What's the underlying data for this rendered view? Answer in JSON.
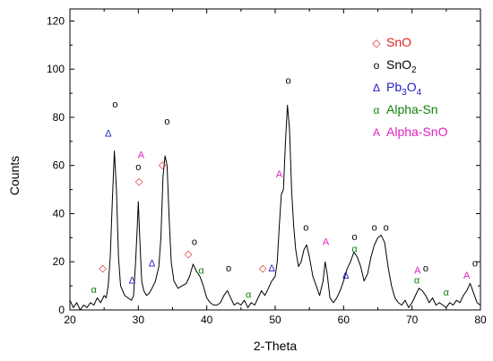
{
  "chart_data": {
    "type": "line",
    "xlabel": "2-Theta",
    "ylabel": "Counts",
    "xlim": [
      20,
      80
    ],
    "ylim": [
      0,
      125
    ],
    "x_ticks": [
      20,
      30,
      40,
      50,
      60,
      70,
      80
    ],
    "y_ticks": [
      0,
      20,
      40,
      60,
      80,
      100,
      120
    ],
    "x_tick_labels": [
      "20",
      "30",
      "40",
      "50",
      "60",
      "70",
      "80"
    ],
    "y_tick_labels": [
      "0",
      "20",
      "40",
      "60",
      "80",
      "100",
      "120"
    ],
    "grid": false,
    "legend_position": "top-right",
    "series": [
      {
        "color": "#000000",
        "points": [
          [
            20,
            4
          ],
          [
            20.5,
            1
          ],
          [
            21,
            3
          ],
          [
            21.5,
            0
          ],
          [
            22,
            2
          ],
          [
            22.5,
            1
          ],
          [
            23,
            3
          ],
          [
            23.5,
            2
          ],
          [
            24,
            5
          ],
          [
            24.5,
            3
          ],
          [
            25,
            6
          ],
          [
            25.3,
            5
          ],
          [
            25.6,
            10
          ],
          [
            25.9,
            22
          ],
          [
            26.2,
            45
          ],
          [
            26.5,
            66
          ],
          [
            26.8,
            50
          ],
          [
            27.1,
            22
          ],
          [
            27.4,
            10
          ],
          [
            27.7,
            8
          ],
          [
            28,
            6
          ],
          [
            28.5,
            5
          ],
          [
            29,
            4
          ],
          [
            29.3,
            6
          ],
          [
            29.6,
            20
          ],
          [
            29.85,
            35
          ],
          [
            30,
            45
          ],
          [
            30.2,
            30
          ],
          [
            30.5,
            12
          ],
          [
            30.8,
            8
          ],
          [
            31.2,
            6
          ],
          [
            31.6,
            7
          ],
          [
            32,
            9
          ],
          [
            32.5,
            12
          ],
          [
            33,
            18
          ],
          [
            33.3,
            30
          ],
          [
            33.6,
            55
          ],
          [
            33.9,
            64
          ],
          [
            34.2,
            60
          ],
          [
            34.5,
            38
          ],
          [
            34.8,
            20
          ],
          [
            35.2,
            12
          ],
          [
            35.8,
            9
          ],
          [
            36.4,
            10
          ],
          [
            37,
            11
          ],
          [
            37.5,
            14
          ],
          [
            38,
            19
          ],
          [
            38.5,
            16
          ],
          [
            39,
            14
          ],
          [
            39.5,
            10
          ],
          [
            40,
            5
          ],
          [
            40.5,
            3
          ],
          [
            41,
            2
          ],
          [
            41.5,
            2
          ],
          [
            42,
            3
          ],
          [
            42.5,
            6
          ],
          [
            43,
            8
          ],
          [
            43.5,
            5
          ],
          [
            44,
            2
          ],
          [
            44.5,
            3
          ],
          [
            45,
            2
          ],
          [
            45.5,
            4
          ],
          [
            46,
            1
          ],
          [
            46.5,
            3
          ],
          [
            47,
            2
          ],
          [
            47.5,
            5
          ],
          [
            48,
            8
          ],
          [
            48.5,
            6
          ],
          [
            49,
            9
          ],
          [
            49.5,
            12
          ],
          [
            50,
            14
          ],
          [
            50.3,
            20
          ],
          [
            50.6,
            35
          ],
          [
            50.9,
            48
          ],
          [
            51.2,
            50
          ],
          [
            51.5,
            70
          ],
          [
            51.8,
            85
          ],
          [
            52.1,
            75
          ],
          [
            52.4,
            50
          ],
          [
            52.7,
            35
          ],
          [
            53,
            25
          ],
          [
            53.4,
            18
          ],
          [
            53.8,
            20
          ],
          [
            54.2,
            25
          ],
          [
            54.6,
            27
          ],
          [
            55,
            22
          ],
          [
            55.5,
            14
          ],
          [
            56,
            10
          ],
          [
            56.5,
            6
          ],
          [
            57,
            12
          ],
          [
            57.3,
            20
          ],
          [
            57.6,
            15
          ],
          [
            58,
            5
          ],
          [
            58.5,
            3
          ],
          [
            59,
            5
          ],
          [
            59.5,
            8
          ],
          [
            60,
            12
          ],
          [
            60.5,
            17
          ],
          [
            61,
            20
          ],
          [
            61.5,
            24
          ],
          [
            62,
            22
          ],
          [
            62.5,
            18
          ],
          [
            63,
            12
          ],
          [
            63.5,
            15
          ],
          [
            64,
            22
          ],
          [
            64.5,
            27
          ],
          [
            65,
            30
          ],
          [
            65.5,
            31
          ],
          [
            66,
            28
          ],
          [
            66.5,
            18
          ],
          [
            67,
            10
          ],
          [
            67.5,
            5
          ],
          [
            68,
            3
          ],
          [
            68.5,
            2
          ],
          [
            69,
            4
          ],
          [
            69.5,
            1
          ],
          [
            70,
            3
          ],
          [
            70.5,
            6
          ],
          [
            71,
            9
          ],
          [
            71.5,
            8
          ],
          [
            72,
            6
          ],
          [
            72.5,
            3
          ],
          [
            73,
            5
          ],
          [
            73.5,
            2
          ],
          [
            74,
            3
          ],
          [
            74.5,
            2
          ],
          [
            75,
            1
          ],
          [
            75.5,
            3
          ],
          [
            76,
            2
          ],
          [
            76.5,
            4
          ],
          [
            77,
            3
          ],
          [
            77.5,
            6
          ],
          [
            78,
            8
          ],
          [
            78.5,
            11
          ],
          [
            79,
            7
          ],
          [
            79.5,
            3
          ],
          [
            80,
            2
          ]
        ]
      }
    ],
    "legend": [
      {
        "symbol": "◇",
        "label": "SnO",
        "sub": "",
        "color": "#e02020"
      },
      {
        "symbol": "o",
        "label": "SnO",
        "sub": "2",
        "color": "#000000"
      },
      {
        "symbol": "Δ",
        "label": "Pb",
        "sub": "3",
        "label2": "O",
        "sub2": "4",
        "color": "#2020c0"
      },
      {
        "symbol": "α",
        "label": "Alpha-Sn",
        "sub": "",
        "color": "#108010"
      },
      {
        "symbol": "A",
        "label": "Alpha-SnO",
        "sub": "",
        "color": "#e020c0"
      }
    ],
    "annotations": [
      {
        "s": "◇",
        "x": 24.8,
        "y": 16,
        "c": "#e02020"
      },
      {
        "s": "α",
        "x": 23.5,
        "y": 7,
        "c": "#108010"
      },
      {
        "s": "o",
        "x": 26.6,
        "y": 84,
        "c": "#000000"
      },
      {
        "s": "Δ",
        "x": 25.6,
        "y": 72,
        "c": "#2020c0"
      },
      {
        "s": "Δ",
        "x": 29.1,
        "y": 11,
        "c": "#2020c0"
      },
      {
        "s": "o",
        "x": 30,
        "y": 58,
        "c": "#000000"
      },
      {
        "s": "◇",
        "x": 30.1,
        "y": 52,
        "c": "#e02020"
      },
      {
        "s": "A",
        "x": 30.4,
        "y": 63,
        "c": "#e020c0"
      },
      {
        "s": "Δ",
        "x": 32,
        "y": 18,
        "c": "#2020c0"
      },
      {
        "s": "◇",
        "x": 33.5,
        "y": 59,
        "c": "#e02020"
      },
      {
        "s": "o",
        "x": 34.2,
        "y": 77,
        "c": "#000000"
      },
      {
        "s": "◇",
        "x": 37.3,
        "y": 22,
        "c": "#e02020"
      },
      {
        "s": "o",
        "x": 38.2,
        "y": 27,
        "c": "#000000"
      },
      {
        "s": "α",
        "x": 39.2,
        "y": 15,
        "c": "#108010"
      },
      {
        "s": "o",
        "x": 43.2,
        "y": 16,
        "c": "#000000"
      },
      {
        "s": "α",
        "x": 46.1,
        "y": 5,
        "c": "#108010"
      },
      {
        "s": "◇",
        "x": 48.2,
        "y": 16,
        "c": "#e02020"
      },
      {
        "s": "Δ",
        "x": 49.5,
        "y": 16,
        "c": "#2020c0"
      },
      {
        "s": "A",
        "x": 50.6,
        "y": 55,
        "c": "#e020c0"
      },
      {
        "s": "o",
        "x": 51.9,
        "y": 94,
        "c": "#000000"
      },
      {
        "s": "o",
        "x": 54.5,
        "y": 33,
        "c": "#000000"
      },
      {
        "s": "A",
        "x": 57.4,
        "y": 27,
        "c": "#e020c0"
      },
      {
        "s": "Δ",
        "x": 60.3,
        "y": 13,
        "c": "#2020c0"
      },
      {
        "s": "o",
        "x": 61.6,
        "y": 29,
        "c": "#000000"
      },
      {
        "s": "α",
        "x": 61.6,
        "y": 24,
        "c": "#108010"
      },
      {
        "s": "o",
        "x": 64.5,
        "y": 33,
        "c": "#000000"
      },
      {
        "s": "o",
        "x": 66.2,
        "y": 33,
        "c": "#000000"
      },
      {
        "s": "A",
        "x": 70.8,
        "y": 15,
        "c": "#e020c0"
      },
      {
        "s": "α",
        "x": 70.7,
        "y": 11,
        "c": "#108010"
      },
      {
        "s": "o",
        "x": 72,
        "y": 16,
        "c": "#000000"
      },
      {
        "s": "α",
        "x": 75,
        "y": 6,
        "c": "#108010"
      },
      {
        "s": "A",
        "x": 78,
        "y": 13,
        "c": "#e020c0"
      },
      {
        "s": "o",
        "x": 79.2,
        "y": 18,
        "c": "#000000"
      }
    ]
  }
}
